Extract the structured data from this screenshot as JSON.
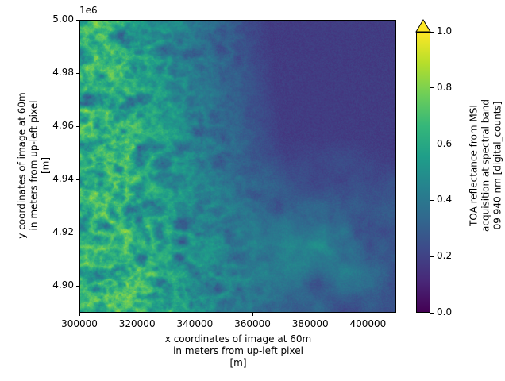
{
  "chart_data": {
    "type": "heatmap",
    "title": "",
    "xlabel": "x coordinates of image at 60m\nin meters from up-left pixel\n[m]",
    "xlabel_lines": [
      "x coordinates of image at 60m",
      "in meters from up-left pixel",
      "[m]"
    ],
    "ylabel": "y coordinates of image at 60m\nin meters from up-left pixel\n[m]",
    "ylabel_lines": [
      "y coordinates of image at 60m",
      "in meters from up-left pixel",
      "[m]"
    ],
    "xlim": [
      300000,
      409800
    ],
    "ylim": [
      4890000,
      5000000
    ],
    "x_ticks": [
      300000,
      320000,
      340000,
      360000,
      380000,
      400000
    ],
    "x_tick_labels": [
      "300000",
      "320000",
      "340000",
      "360000",
      "380000",
      "400000"
    ],
    "y_ticks": [
      4.9,
      4.92,
      4.94,
      4.96,
      4.98,
      5.0
    ],
    "y_tick_labels": [
      "4.90",
      "4.92",
      "4.94",
      "4.96",
      "4.98",
      "5.00"
    ],
    "y_offset_text": "1e6",
    "colormap": "viridis",
    "colorbar": {
      "label_lines": [
        "TOA reflectance from MSI",
        "acquisition at spectral band",
        "09 940 nm [digital_counts]"
      ],
      "vmin": 0.0,
      "vmax": 1.0,
      "extend": "max",
      "ticks": [
        0.0,
        0.2,
        0.4,
        0.6,
        0.8,
        1.0
      ],
      "tick_labels": [
        "0.0",
        "0.2",
        "0.4",
        "0.6",
        "0.8",
        "1.0"
      ]
    },
    "description": "Satellite reflectance raster: bright (green-yellow, ~0.5-1.0) rugged mountainous terrain in western half; darker (purple, ~0.1-0.3) smoother plains in the east with hazy cloud-like patches (~0.3-0.5) in the southeast.",
    "grid": false
  },
  "colors": {
    "viridis_stops": [
      "#440154",
      "#482878",
      "#3e4989",
      "#31688e",
      "#26828e",
      "#1f9e89",
      "#35b779",
      "#6ece58",
      "#b5de2b",
      "#fde725"
    ]
  }
}
